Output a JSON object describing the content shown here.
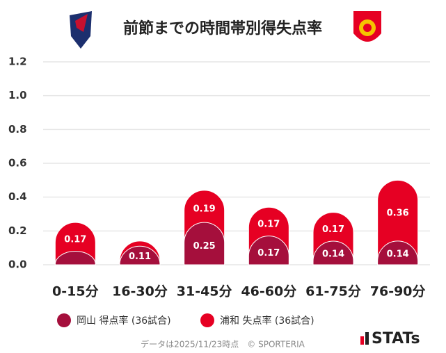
{
  "chart_data": {
    "type": "bar",
    "stacked": true,
    "title": "前節までの時間帯別得失点率",
    "categories": [
      "0-15分",
      "16-30分",
      "31-45分",
      "46-60分",
      "61-75分",
      "76-90分"
    ],
    "series": [
      {
        "name": "岡山 得点率 (36試合)",
        "color": "#a50f3c",
        "values": [
          0.08,
          0.11,
          0.25,
          0.17,
          0.14,
          0.14
        ]
      },
      {
        "name": "浦和 失点率 (36試合)",
        "color": "#e60023",
        "values": [
          0.17,
          0.03,
          0.19,
          0.17,
          0.17,
          0.36
        ]
      }
    ],
    "ylim": [
      0,
      1.2
    ],
    "yticks": [
      {
        "value": 0,
        "label": "0.0"
      },
      0.2,
      0.4,
      0.6,
      0.8,
      {
        "value": 1,
        "label": "1.0"
      },
      1.2
    ],
    "grid": true,
    "footnote": "データは2025/11/23時点　© SPORTERIA",
    "brand": "STATs"
  }
}
